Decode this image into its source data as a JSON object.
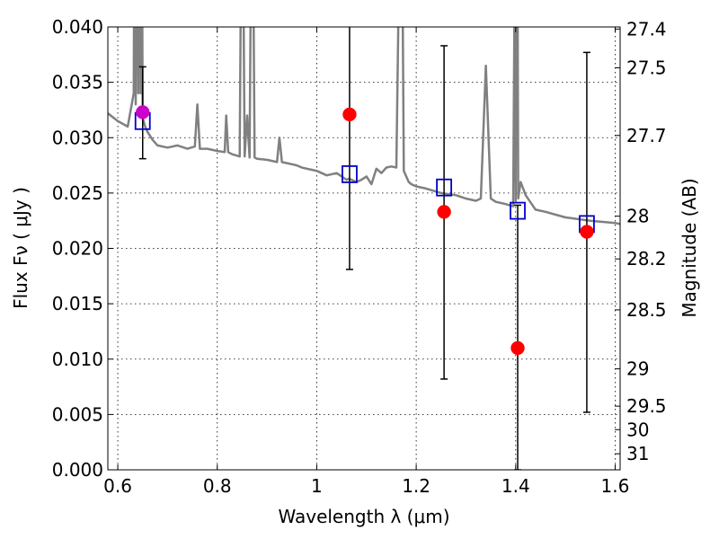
{
  "chart_data": {
    "type": "scatter",
    "xlabel": "Wavelength  λ (μm)",
    "ylabel": "Flux  Fν ( μJy )",
    "y2label": "Magnitude (AB)",
    "xlim": [
      0.58,
      1.61
    ],
    "ylim": [
      0.0,
      0.04
    ],
    "grid": true,
    "x_ticks": [
      0.6,
      0.8,
      1.0,
      1.2,
      1.4,
      1.6
    ],
    "x_tick_labels": [
      "0.6",
      "0.8",
      "1",
      "1.2",
      "1.4",
      "1.6"
    ],
    "y_ticks": [
      0.0,
      0.005,
      0.01,
      0.015,
      0.02,
      0.025,
      0.03,
      0.035,
      0.04
    ],
    "y_tick_labels": [
      "0.000",
      "0.005",
      "0.010",
      "0.015",
      "0.020",
      "0.025",
      "0.030",
      "0.035",
      "0.040"
    ],
    "magnitude_ticks": [
      {
        "label": "27.4",
        "flux": 0.03981
      },
      {
        "label": "27.5",
        "flux": 0.03631
      },
      {
        "label": "27.7",
        "flux": 0.0302
      },
      {
        "label": "28",
        "flux": 0.02291
      },
      {
        "label": "28.2",
        "flux": 0.01905
      },
      {
        "label": "28.5",
        "flux": 0.01445
      },
      {
        "label": "29",
        "flux": 0.00912
      },
      {
        "label": "29.5",
        "flux": 0.00575
      },
      {
        "label": "30",
        "flux": 0.00363
      },
      {
        "label": "31",
        "flux": 0.00145
      }
    ],
    "colors": {
      "template": "#808080",
      "observed": "#ff0000",
      "model": "#0000cc",
      "errorbar": "#000000",
      "optical_point": "#cc00cc"
    },
    "series": [
      {
        "type": "line",
        "x": [
          0.58,
          0.6,
          0.62,
          0.632,
          0.634,
          0.636,
          0.638,
          0.641,
          0.644,
          0.646,
          0.648,
          0.65,
          0.655,
          0.66,
          0.67,
          0.68,
          0.7,
          0.72,
          0.74,
          0.755,
          0.76,
          0.765,
          0.78,
          0.8,
          0.815,
          0.818,
          0.822,
          0.83,
          0.845,
          0.85,
          0.855,
          0.86,
          0.865,
          0.87,
          0.875,
          0.88,
          0.9,
          0.92,
          0.925,
          0.93,
          0.94,
          0.95,
          0.96,
          0.97,
          0.98,
          0.99,
          1.0,
          1.01,
          1.02,
          1.04,
          1.06,
          1.06,
          1.065,
          1.07,
          1.08,
          1.09,
          1.1,
          1.11,
          1.12,
          1.13,
          1.14,
          1.15,
          1.16,
          1.17,
          1.175,
          1.18,
          1.185,
          1.19,
          1.2,
          1.22,
          1.25,
          1.28,
          1.3,
          1.32,
          1.33,
          1.34,
          1.35,
          1.36,
          1.38,
          1.395,
          1.398,
          1.4,
          1.402,
          1.405,
          1.41,
          1.42,
          1.44,
          1.46,
          1.5,
          1.55,
          1.6,
          1.61
        ],
        "y": [
          0.0322,
          0.0315,
          0.031,
          0.034,
          0.06,
          0.033,
          0.06,
          0.034,
          0.07,
          0.034,
          0.06,
          0.0318,
          0.031,
          0.0305,
          0.0298,
          0.0293,
          0.0291,
          0.0293,
          0.029,
          0.0292,
          0.033,
          0.029,
          0.029,
          0.0288,
          0.0287,
          0.032,
          0.0287,
          0.0285,
          0.0283,
          0.06,
          0.0283,
          0.032,
          0.0282,
          0.06,
          0.0282,
          0.0281,
          0.028,
          0.0278,
          0.03,
          0.0278,
          0.0277,
          0.0276,
          0.0275,
          0.0273,
          0.0272,
          0.0271,
          0.027,
          0.0268,
          0.0266,
          0.0268,
          0.0262,
          0.0262,
          0.0263,
          0.0262,
          0.026,
          0.0262,
          0.0265,
          0.0258,
          0.0272,
          0.0268,
          0.0273,
          0.0274,
          0.0273,
          0.06,
          0.027,
          0.0265,
          0.026,
          0.0258,
          0.0256,
          0.0254,
          0.025,
          0.0248,
          0.0245,
          0.0243,
          0.0245,
          0.0365,
          0.0245,
          0.0242,
          0.024,
          0.0238,
          0.045,
          0.0243,
          0.07,
          0.0245,
          0.026,
          0.0248,
          0.0235,
          0.0233,
          0.0228,
          0.0225,
          0.0223,
          0.0222
        ]
      },
      {
        "type": "errorbar",
        "x": [
          0.65,
          1.066,
          1.256,
          1.404,
          1.543
        ],
        "y_low": [
          0.0281,
          0.0181,
          0.0082,
          0.0,
          0.0052
        ],
        "y_high": [
          0.0364,
          0.05,
          0.0383,
          0.0239,
          0.0377
        ]
      },
      {
        "type": "scatter",
        "marker": "square",
        "x": [
          0.65,
          1.066,
          1.256,
          1.404,
          1.543
        ],
        "y": [
          0.0315,
          0.0267,
          0.0255,
          0.0234,
          0.0222
        ]
      },
      {
        "type": "scatter",
        "marker": "circle",
        "x": [
          0.65,
          1.066,
          1.256,
          1.404,
          1.543
        ],
        "y": [
          0.0323,
          0.0321,
          0.0233,
          0.011,
          0.0215
        ]
      }
    ]
  }
}
